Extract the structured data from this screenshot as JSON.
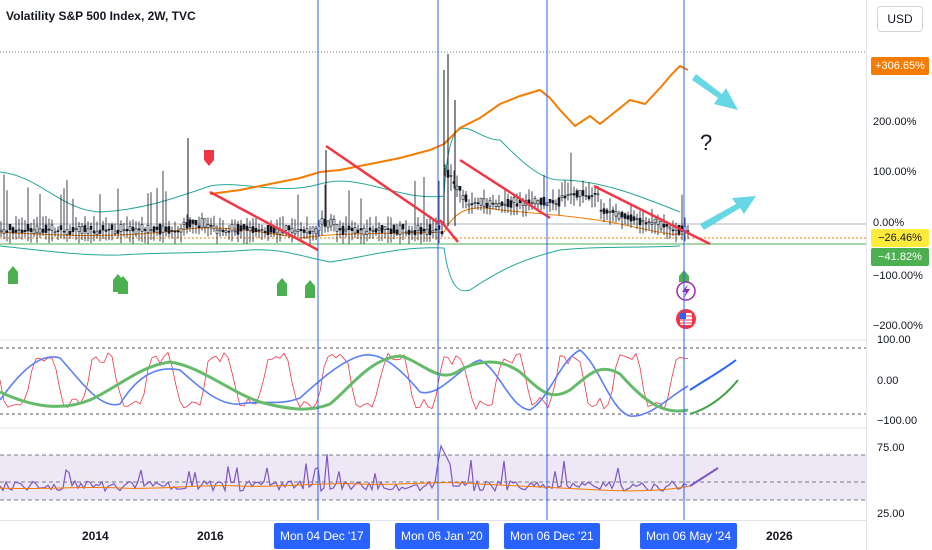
{
  "title": "Volatility S&P 500 Index, 2W, TVC",
  "currency": "USD",
  "annotation_text": "?",
  "price_scale": {
    "ticks": [
      "200.00%",
      "100.00%",
      "0.00%",
      "−100.00%",
      "−200.00%"
    ],
    "badges": [
      {
        "text": "+306.65%",
        "bg": "#f57c00",
        "fg": "#ffffff"
      },
      {
        "text": "−26.46%",
        "bg": "#ffeb3b",
        "fg": "#131722"
      },
      {
        "text": "−41.82%",
        "bg": "#4caf50",
        "fg": "#ffffff"
      }
    ],
    "osc_ticks": [
      "100.00",
      "0.00",
      "−100.00"
    ],
    "rsi_ticks": [
      "75.00",
      "25.00"
    ]
  },
  "time_axis": {
    "labels": [
      "2014",
      "2016",
      "2026"
    ],
    "markers": [
      "Mon 04 Dec '17",
      "Mon 06 Jan '20",
      "Mon 06 Dec '21",
      "Mon 06 May '24"
    ]
  },
  "colors": {
    "candle": "#131722",
    "comparison": "#f57c00",
    "bands": "#26a69a",
    "trendline": "#f23645",
    "vertical_line": "#2962ff",
    "arrow": "#4dd0e1",
    "osc_fast": "#f23645",
    "osc_signal": "#5b7ff5",
    "osc_slow": "#66bb6a",
    "rsi": "#7e57c2",
    "rsi_ma": "#f57c00",
    "rsi_band": "#ede7f6",
    "marker_up": "#4caf50",
    "marker_down": "#f23645"
  },
  "icons": [
    "lightning-event-icon",
    "us-flag-event-icon"
  ]
}
